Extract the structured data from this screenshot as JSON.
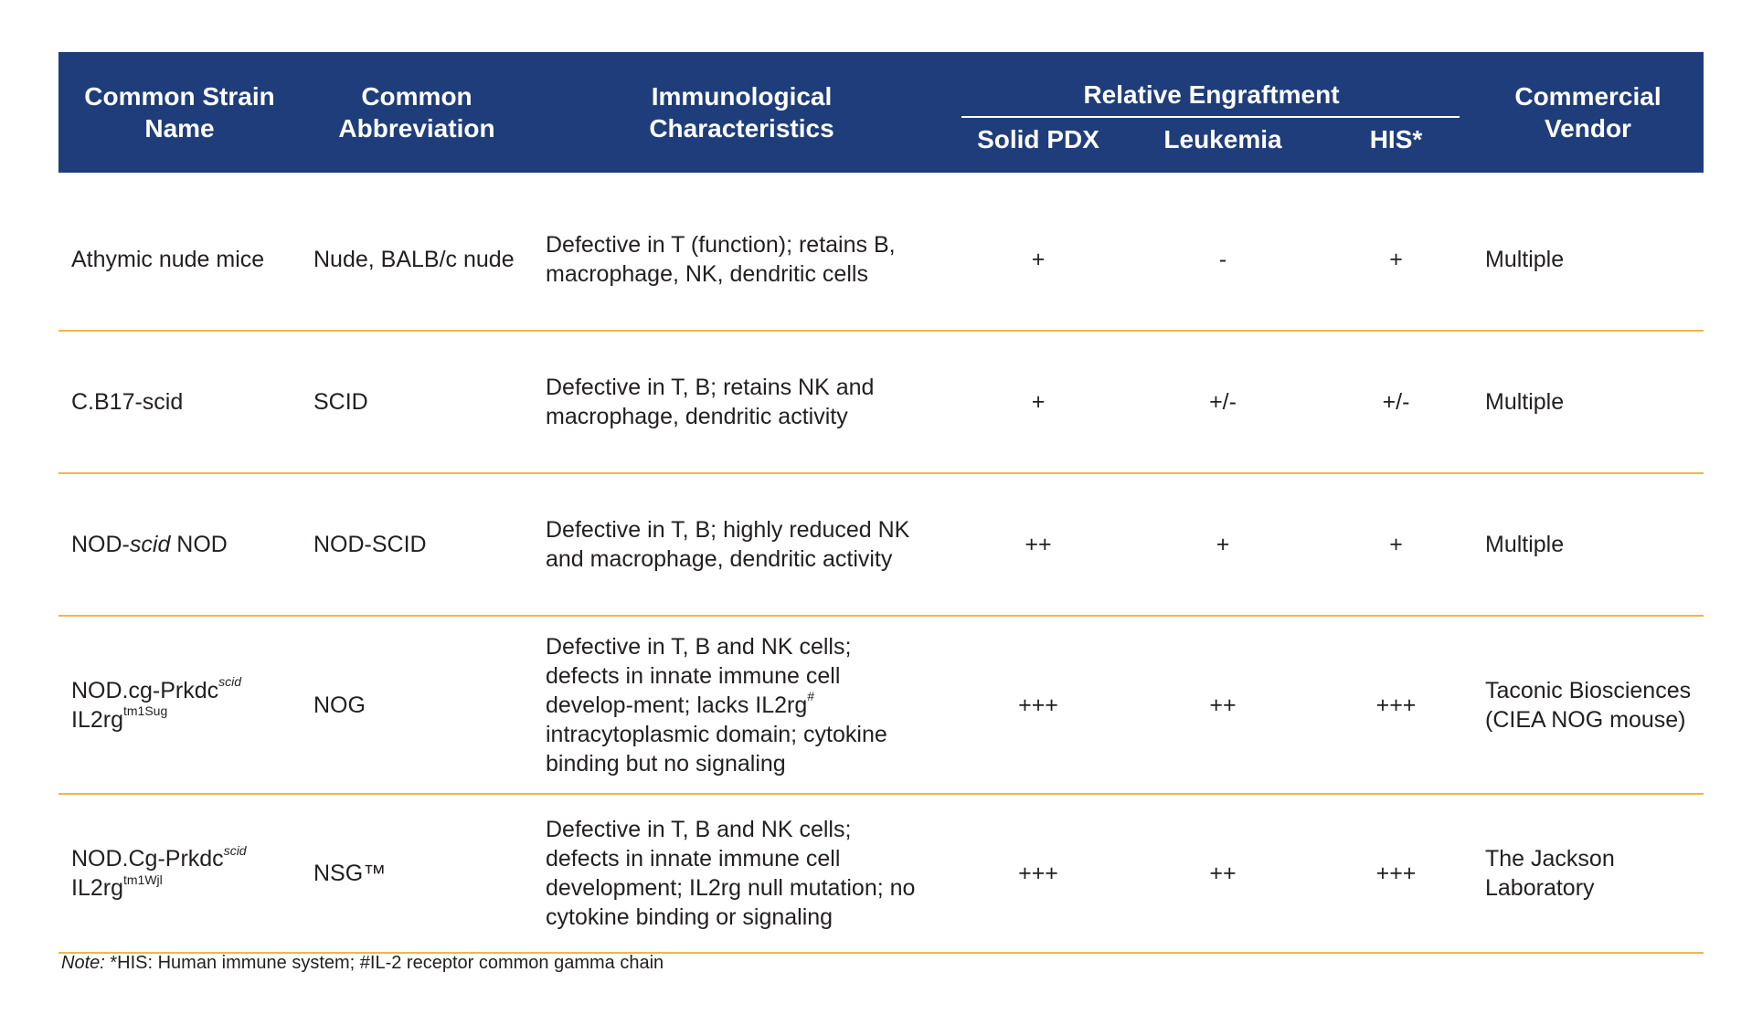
{
  "header": {
    "strain_name": "Common Strain Name",
    "abbreviation": "Common Abbreviation",
    "immunological": "Immunological Characteristics",
    "relative_engraftment": "Relative Engraftment",
    "solid_pdx": "Solid PDX",
    "leukemia": "Leukemia",
    "his": "HIS*",
    "vendor": "Commercial Vendor"
  },
  "rows": [
    {
      "strain": "Athymic nude mice",
      "abbreviation": "Nude, BALB/c nude",
      "characteristics": "Defective in T (function); retains B, macrophage, NK, dendritic cells",
      "solid_pdx": "+",
      "leukemia": "-",
      "his": "+",
      "vendor": "Multiple"
    },
    {
      "strain": "C.B17-scid",
      "abbreviation": "SCID",
      "characteristics": "Defective in T, B; retains NK and macrophage, dendritic activity",
      "solid_pdx": "+",
      "leukemia": "+/-",
      "his": "+/-",
      "vendor": "Multiple"
    },
    {
      "strain_prefix": "NOD-",
      "strain_italic": "scid",
      "strain_suffix": " NOD",
      "abbreviation": "NOD-SCID",
      "characteristics": "Defective in T, B; highly reduced NK and macrophage, dendritic activity",
      "solid_pdx": "++",
      "leukemia": "+",
      "his": "+",
      "vendor": "Multiple"
    },
    {
      "strain_line1": "NOD.cg-Prkdc",
      "strain_line1_sup": "scid",
      "strain_line2": "IL2rg",
      "strain_line2_sup": "tm1Sug",
      "abbreviation": "NOG",
      "characteristics_a": "Defective in T, B and NK cells; defects in innate immune cell develop-ment; lacks IL2rg",
      "characteristics_sup": "#",
      "characteristics_b": " intracytoplasmic domain; cytokine binding but no signaling",
      "solid_pdx": "+++",
      "leukemia": "++",
      "his": "+++",
      "vendor": "Taconic Biosciences (CIEA NOG mouse)"
    },
    {
      "strain_line1": "NOD.Cg-Prkdc",
      "strain_line1_sup": "scid",
      "strain_line2": "IL2rg",
      "strain_line2_sup": "tm1Wjl",
      "abbreviation": "NSG™",
      "characteristics": "Defective in T, B and NK cells; defects in innate immune cell development; IL2rg null mutation; no cytokine binding or signaling",
      "solid_pdx": "+++",
      "leukemia": "++",
      "his": "+++",
      "vendor": "The Jackson Laboratory"
    }
  ],
  "note": {
    "label": "Note:",
    "text": " *HIS: Human immune system; #IL-2 receptor common gamma chain"
  }
}
